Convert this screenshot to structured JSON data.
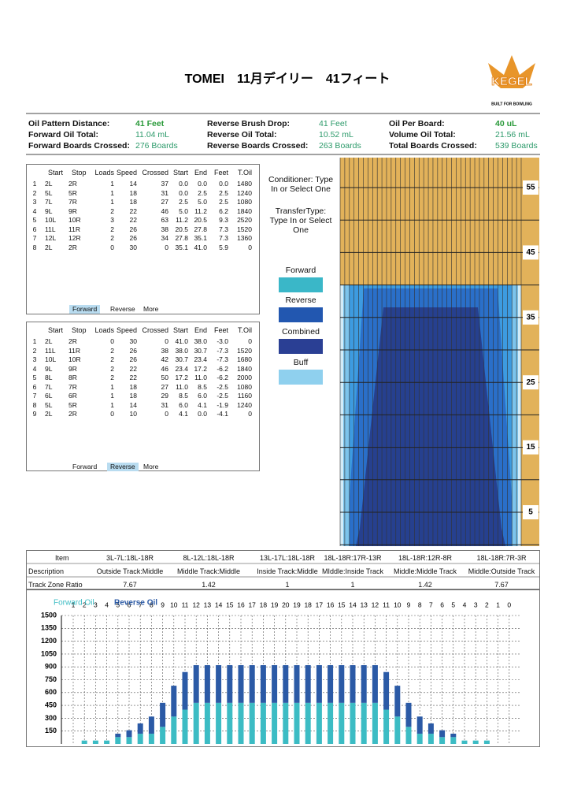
{
  "header": {
    "title": "TOMEI　11月デイリー　41フィート",
    "logo": "KEGEL",
    "logo_tagline": "BUILT FOR BOWLING"
  },
  "summary": [
    {
      "label": "Oil Pattern Distance:",
      "value": "41 Feet"
    },
    {
      "label": "Forward Oil Total:",
      "value": "11.04 mL"
    },
    {
      "label": "Forward Boards Crossed:",
      "value": "276 Boards"
    },
    {
      "label": "Reverse Brush Drop:",
      "value": "41 Feet"
    },
    {
      "label": "Reverse Oil Total:",
      "value": "10.52 mL"
    },
    {
      "label": "Reverse Boards Crossed:",
      "value": "263 Boards"
    },
    {
      "label": "Oil Per Board:",
      "value": "40 uL"
    },
    {
      "label": "Volume Oil Total:",
      "value": "21.56 mL"
    },
    {
      "label": "Total Boards Crossed:",
      "value": "539 Boards"
    }
  ],
  "forward_table": {
    "columns": [
      "Start",
      "Stop",
      "Loads",
      "Speed",
      "Crossed",
      "Start",
      "End",
      "Feet",
      "T.Oil"
    ],
    "rows": [
      [
        "1",
        "2L",
        "2R",
        "1",
        "14",
        "37",
        "0.0",
        "0.0",
        "0.0",
        "1480"
      ],
      [
        "2",
        "5L",
        "5R",
        "1",
        "18",
        "31",
        "0.0",
        "2.5",
        "2.5",
        "1240"
      ],
      [
        "3",
        "7L",
        "7R",
        "1",
        "18",
        "27",
        "2.5",
        "5.0",
        "2.5",
        "1080"
      ],
      [
        "4",
        "9L",
        "9R",
        "2",
        "22",
        "46",
        "5.0",
        "11.2",
        "6.2",
        "1840"
      ],
      [
        "5",
        "10L",
        "10R",
        "3",
        "22",
        "63",
        "11.2",
        "20.5",
        "9.3",
        "2520"
      ],
      [
        "6",
        "11L",
        "11R",
        "2",
        "26",
        "38",
        "20.5",
        "27.8",
        "7.3",
        "1520"
      ],
      [
        "7",
        "12L",
        "12R",
        "2",
        "26",
        "34",
        "27.8",
        "35.1",
        "7.3",
        "1360"
      ],
      [
        "8",
        "2L",
        "2R",
        "0",
        "30",
        "0",
        "35.1",
        "41.0",
        "5.9",
        "0"
      ]
    ],
    "tabs": [
      "Forward",
      "Reverse",
      "More"
    ]
  },
  "reverse_table": {
    "columns": [
      "Start",
      "Stop",
      "Loads",
      "Speed",
      "Crossed",
      "Start",
      "End",
      "Feet",
      "T.Oil"
    ],
    "rows": [
      [
        "1",
        "2L",
        "2R",
        "0",
        "30",
        "0",
        "41.0",
        "38.0",
        "-3.0",
        "0"
      ],
      [
        "2",
        "11L",
        "11R",
        "2",
        "26",
        "38",
        "38.0",
        "30.7",
        "-7.3",
        "1520"
      ],
      [
        "3",
        "10L",
        "10R",
        "2",
        "26",
        "42",
        "30.7",
        "23.4",
        "-7.3",
        "1680"
      ],
      [
        "4",
        "9L",
        "9R",
        "2",
        "22",
        "46",
        "23.4",
        "17.2",
        "-6.2",
        "1840"
      ],
      [
        "5",
        "8L",
        "8R",
        "2",
        "22",
        "50",
        "17.2",
        "11.0",
        "-6.2",
        "2000"
      ],
      [
        "6",
        "7L",
        "7R",
        "1",
        "18",
        "27",
        "11.0",
        "8.5",
        "-2.5",
        "1080"
      ],
      [
        "7",
        "6L",
        "6R",
        "1",
        "18",
        "29",
        "8.5",
        "6.0",
        "-2.5",
        "1160"
      ],
      [
        "8",
        "5L",
        "5R",
        "1",
        "14",
        "31",
        "6.0",
        "4.1",
        "-1.9",
        "1240"
      ],
      [
        "9",
        "2L",
        "2R",
        "0",
        "10",
        "0",
        "4.1",
        "0.0",
        "-4.1",
        "0"
      ]
    ],
    "tabs": [
      "Forward",
      "Reverse",
      "More"
    ]
  },
  "side_panel": {
    "conditioner": "Conditioner: Type In or Select One",
    "transfer_type": "TransferType: Type In or Select One",
    "legend": [
      {
        "name": "Forward",
        "color": "#3ab7c8"
      },
      {
        "name": "Reverse",
        "color": "#2257b0"
      },
      {
        "name": "Combined",
        "color": "#2a3f94"
      },
      {
        "name": "Buff",
        "color": "#8fd0ee"
      }
    ]
  },
  "oil_graph": {
    "feet_labels": [
      55,
      45,
      35,
      25,
      15,
      5
    ]
  },
  "zone_table": {
    "rows": [
      [
        "Item",
        "3L-7L:18L-18R",
        "8L-12L:18L-18R",
        "13L-17L:18L-18R",
        "18L-18R:17R-13R",
        "18L-18R:12R-8R",
        "18L-18R:7R-3R"
      ],
      [
        "Description",
        "Outside Track:Middle",
        "Middle Track:Middle",
        "Inside Track:Middle",
        "MIddle:Inside Track",
        "Middle:Middle Track",
        "Middle:Outside Track"
      ],
      [
        "Track Zone Ratio",
        "7.67",
        "1.42",
        "1",
        "1",
        "1.42",
        "7.67"
      ]
    ]
  },
  "chart_data": {
    "type": "bar",
    "stacked": true,
    "categories": [
      "1",
      "2",
      "3",
      "4",
      "5",
      "6",
      "7",
      "8",
      "9",
      "10",
      "11",
      "12",
      "13",
      "14",
      "15",
      "16",
      "17",
      "18",
      "19",
      "20",
      "19",
      "18",
      "17",
      "16",
      "15",
      "14",
      "13",
      "12",
      "11",
      "10",
      "9",
      "8",
      "7",
      "6",
      "5",
      "4",
      "3",
      "2",
      "1",
      "0"
    ],
    "series": [
      {
        "name": "Forward Oil",
        "color": "#3cbcc4",
        "values": [
          0,
          40,
          40,
          40,
          80,
          80,
          120,
          120,
          200,
          320,
          400,
          480,
          480,
          480,
          480,
          480,
          480,
          480,
          480,
          480,
          480,
          480,
          480,
          480,
          480,
          480,
          480,
          480,
          400,
          320,
          200,
          120,
          120,
          80,
          80,
          40,
          40,
          40,
          0,
          null
        ]
      },
      {
        "name": "Reverse Oil",
        "color": "#2b5aa6",
        "values": [
          0,
          0,
          0,
          0,
          40,
          80,
          120,
          200,
          280,
          360,
          440,
          440,
          440,
          440,
          440,
          440,
          440,
          440,
          440,
          440,
          440,
          440,
          440,
          440,
          440,
          440,
          440,
          440,
          440,
          360,
          280,
          200,
          120,
          80,
          40,
          0,
          0,
          0,
          0,
          null
        ]
      }
    ],
    "ylim": [
      0,
      1500
    ],
    "yticks": [
      150,
      300,
      450,
      600,
      750,
      900,
      1050,
      1200,
      1350,
      1500
    ],
    "grid": true
  }
}
